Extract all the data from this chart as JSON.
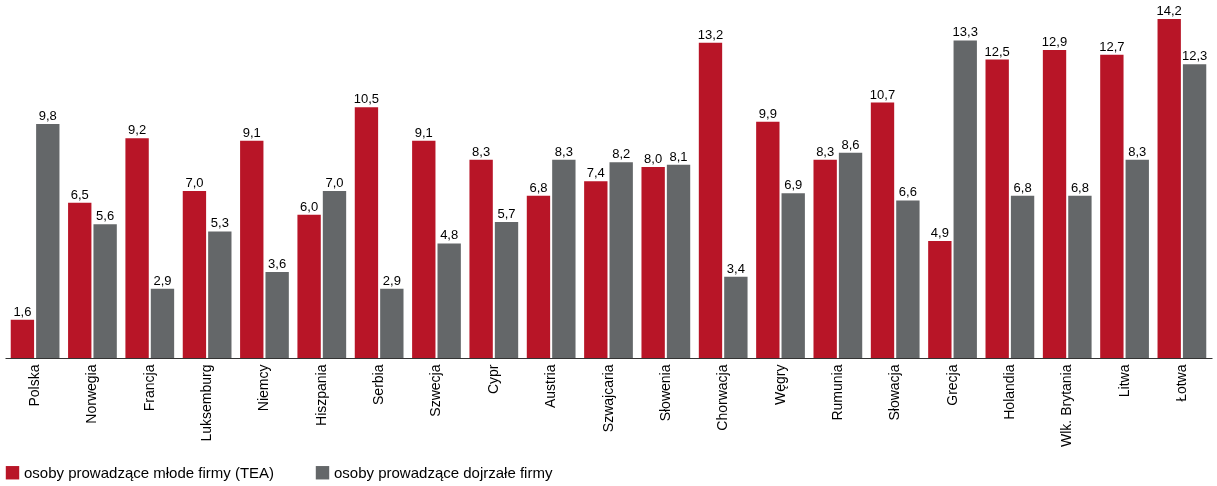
{
  "chart_data": {
    "type": "bar",
    "categories": [
      "Polska",
      "Norwegia",
      "Francja",
      "Luksemburg",
      "Niemcy",
      "Hiszpania",
      "Serbia",
      "Szwecja",
      "Cypr",
      "Austria",
      "Szwajcaria",
      "Słowenia",
      "Chorwacja",
      "Węgry",
      "Rumunia",
      "Słowacja",
      "Grecja",
      "Holandia",
      "Wlk. Brytania",
      "Litwa",
      "Łotwa"
    ],
    "series": [
      {
        "name": "osoby prowadzące młode firmy (TEA)",
        "color": "#b81527",
        "values": [
          1.6,
          6.5,
          9.2,
          7.0,
          9.1,
          6.0,
          10.5,
          9.1,
          8.3,
          6.8,
          7.4,
          8.0,
          13.2,
          9.9,
          8.3,
          10.7,
          4.9,
          12.5,
          12.9,
          12.7,
          14.2
        ],
        "value_labels": [
          "1,6",
          "6,5",
          "9,2",
          "7,0",
          "9,1",
          "6,0",
          "10,5",
          "9,1",
          "8,3",
          "6,8",
          "7,4",
          "8,0",
          "13,2",
          "9,9",
          "8,3",
          "10,7",
          "4,9",
          "12,5",
          "12,9",
          "12,7",
          "14,2"
        ]
      },
      {
        "name": "osoby prowadzące dojrzałe firmy",
        "color": "#646769",
        "values": [
          9.8,
          5.6,
          2.9,
          5.3,
          3.6,
          7.0,
          2.9,
          4.8,
          5.7,
          8.3,
          8.2,
          8.1,
          3.4,
          6.9,
          8.6,
          6.6,
          13.3,
          6.8,
          6.8,
          8.3,
          12.3
        ],
        "value_labels": [
          "9,8",
          "5,6",
          "2,9",
          "5,3",
          "3,6",
          "7,0",
          "2,9",
          "4,8",
          "5,7",
          "8,3",
          "8,2",
          "8,1",
          "3,4",
          "6,9",
          "8,6",
          "6,6",
          "13,3",
          "6,8",
          "6,8",
          "8,3",
          "12,3"
        ]
      }
    ],
    "legend": "bottom",
    "grid": false
  }
}
